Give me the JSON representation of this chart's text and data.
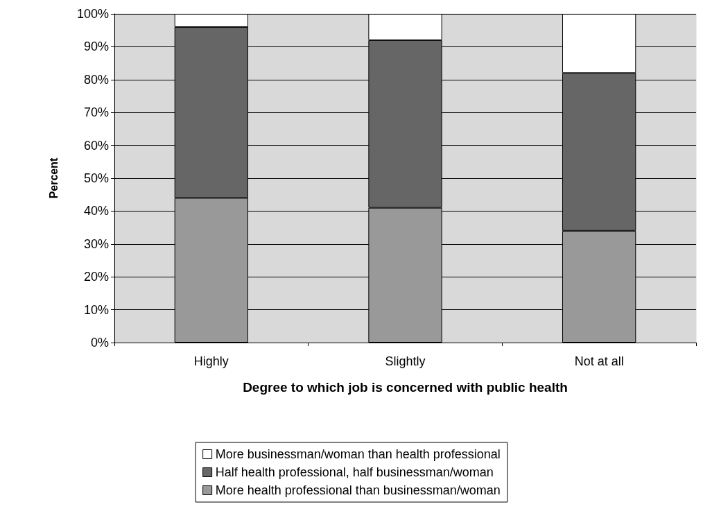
{
  "chart_data": {
    "type": "bar",
    "stacked": true,
    "xlabel": "Degree to which job is concerned with public health",
    "ylabel": "Percent",
    "categories": [
      "Highly",
      "Slightly",
      "Not at all"
    ],
    "series": [
      {
        "name": "More health professional than businessman/woman",
        "color": "#999999",
        "values": [
          44,
          41,
          34
        ]
      },
      {
        "name": "Half health professional, half businessman/woman",
        "color": "#666666",
        "values": [
          52,
          51,
          48
        ]
      },
      {
        "name": "More businessman/woman than health professional",
        "color": "#ffffff",
        "values": [
          4,
          8,
          18
        ]
      }
    ],
    "ylim": [
      0,
      100
    ],
    "yticks": [
      {
        "value": 0,
        "label": "0%"
      },
      {
        "value": 10,
        "label": "10%"
      },
      {
        "value": 20,
        "label": "20%"
      },
      {
        "value": 30,
        "label": "30%"
      },
      {
        "value": 40,
        "label": "40%"
      },
      {
        "value": 50,
        "label": "50%"
      },
      {
        "value": 60,
        "label": "60%"
      },
      {
        "value": 70,
        "label": "70%"
      },
      {
        "value": 80,
        "label": "80%"
      },
      {
        "value": 90,
        "label": "90%"
      },
      {
        "value": 100,
        "label": "100%"
      }
    ],
    "grid": "y",
    "legend": "bottom"
  }
}
